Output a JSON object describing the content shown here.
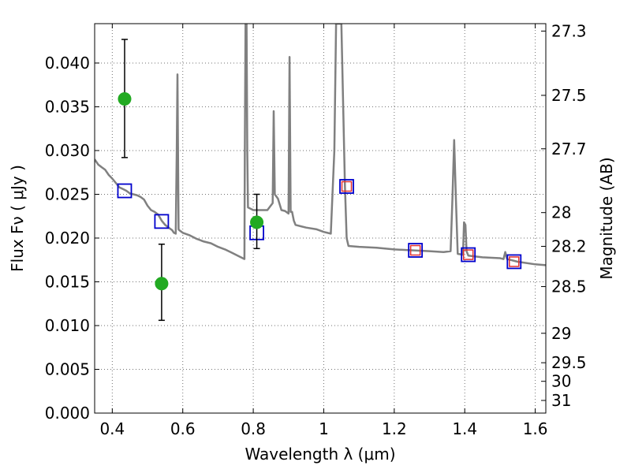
{
  "chart_data": {
    "type": "scatter",
    "xlabel": "Wavelength  λ (μm)",
    "ylabel": "Flux  Fν  ( μJy )",
    "ylabel_right": "Magnitude (AB)",
    "xlim": [
      0.35,
      1.63
    ],
    "ylim": [
      0.0,
      0.0445
    ],
    "grid": true,
    "x_ticks": [
      0.4,
      0.6,
      0.8,
      1.0,
      1.2,
      1.4,
      1.6
    ],
    "x_tick_labels": [
      "0.4",
      "0.6",
      "0.8",
      "1",
      "1.2",
      "1.4",
      "1.6"
    ],
    "y_ticks": [
      0.0,
      0.005,
      0.01,
      0.015,
      0.02,
      0.025,
      0.03,
      0.035,
      0.04
    ],
    "y_tick_labels": [
      "0.000",
      "0.005",
      "0.010",
      "0.015",
      "0.020",
      "0.025",
      "0.030",
      "0.035",
      "0.040"
    ],
    "right_ticks": [
      {
        "label": "27.3",
        "mag": 27.3
      },
      {
        "label": "27.5",
        "mag": 27.5
      },
      {
        "label": "27.7",
        "mag": 27.7
      },
      {
        "label": "28",
        "mag": 28.0
      },
      {
        "label": "28.2",
        "mag": 28.2
      },
      {
        "label": "28.5",
        "mag": 28.5
      },
      {
        "label": "29",
        "mag": 29.0
      },
      {
        "label": "29.5",
        "mag": 29.5
      },
      {
        "label": "30",
        "mag": 30.0
      },
      {
        "label": "31",
        "mag": 31.0
      }
    ],
    "series": [
      {
        "kind": "line",
        "color": "#808080",
        "points": [
          [
            0.35,
            0.029
          ],
          [
            0.36,
            0.0284
          ],
          [
            0.37,
            0.0281
          ],
          [
            0.38,
            0.0278
          ],
          [
            0.39,
            0.0272
          ],
          [
            0.4,
            0.0268
          ],
          [
            0.41,
            0.0263
          ],
          [
            0.42,
            0.0258
          ],
          [
            0.43,
            0.0256
          ],
          [
            0.44,
            0.0254
          ],
          [
            0.45,
            0.0251
          ],
          [
            0.46,
            0.025
          ],
          [
            0.47,
            0.0249
          ],
          [
            0.48,
            0.0247
          ],
          [
            0.49,
            0.0244
          ],
          [
            0.5,
            0.0237
          ],
          [
            0.51,
            0.0232
          ],
          [
            0.52,
            0.023
          ],
          [
            0.53,
            0.0227
          ],
          [
            0.54,
            0.022
          ],
          [
            0.55,
            0.0215
          ],
          [
            0.56,
            0.0212
          ],
          [
            0.57,
            0.0209
          ],
          [
            0.575,
            0.0206
          ],
          [
            0.58,
            0.0205
          ],
          [
            0.583,
            0.03
          ],
          [
            0.585,
            0.0387
          ],
          [
            0.588,
            0.021
          ],
          [
            0.59,
            0.0209
          ],
          [
            0.6,
            0.0206
          ],
          [
            0.62,
            0.0203
          ],
          [
            0.64,
            0.0199
          ],
          [
            0.66,
            0.0196
          ],
          [
            0.68,
            0.0194
          ],
          [
            0.7,
            0.019
          ],
          [
            0.72,
            0.0187
          ],
          [
            0.74,
            0.0183
          ],
          [
            0.76,
            0.0179
          ],
          [
            0.77,
            0.0177
          ],
          [
            0.775,
            0.0176
          ],
          [
            0.776,
            0.03
          ],
          [
            0.778,
            0.0445
          ],
          [
            0.781,
            0.0445
          ],
          [
            0.783,
            0.03
          ],
          [
            0.785,
            0.0235
          ],
          [
            0.8,
            0.0232
          ],
          [
            0.82,
            0.0232
          ],
          [
            0.84,
            0.0232
          ],
          [
            0.855,
            0.024
          ],
          [
            0.858,
            0.0345
          ],
          [
            0.861,
            0.025
          ],
          [
            0.87,
            0.0245
          ],
          [
            0.88,
            0.0232
          ],
          [
            0.89,
            0.0231
          ],
          [
            0.9,
            0.0228
          ],
          [
            0.903,
            0.0407
          ],
          [
            0.906,
            0.023
          ],
          [
            0.91,
            0.023
          ],
          [
            0.915,
            0.022
          ],
          [
            0.92,
            0.0215
          ],
          [
            0.95,
            0.0212
          ],
          [
            0.98,
            0.021
          ],
          [
            1.0,
            0.0207
          ],
          [
            1.02,
            0.0205
          ],
          [
            1.03,
            0.03
          ],
          [
            1.035,
            0.0445
          ],
          [
            1.05,
            0.0445
          ],
          [
            1.06,
            0.026
          ],
          [
            1.065,
            0.02
          ],
          [
            1.07,
            0.0191
          ],
          [
            1.1,
            0.019
          ],
          [
            1.15,
            0.0189
          ],
          [
            1.2,
            0.0187
          ],
          [
            1.25,
            0.0186
          ],
          [
            1.3,
            0.0185
          ],
          [
            1.34,
            0.0184
          ],
          [
            1.36,
            0.0185
          ],
          [
            1.365,
            0.0245
          ],
          [
            1.37,
            0.0312
          ],
          [
            1.375,
            0.0245
          ],
          [
            1.38,
            0.0182
          ],
          [
            1.395,
            0.0181
          ],
          [
            1.398,
            0.0218
          ],
          [
            1.402,
            0.0215
          ],
          [
            1.405,
            0.0185
          ],
          [
            1.41,
            0.018
          ],
          [
            1.45,
            0.0178
          ],
          [
            1.5,
            0.0177
          ],
          [
            1.51,
            0.0176
          ],
          [
            1.515,
            0.0184
          ],
          [
            1.52,
            0.0176
          ],
          [
            1.55,
            0.0173
          ],
          [
            1.6,
            0.017
          ],
          [
            1.63,
            0.0169
          ]
        ]
      },
      {
        "kind": "model-squares",
        "color": "#0000cc",
        "points": [
          [
            0.435,
            0.0254
          ],
          [
            0.54,
            0.0219
          ],
          [
            0.81,
            0.0206
          ],
          [
            1.065,
            0.0259
          ],
          [
            1.26,
            0.0186
          ],
          [
            1.41,
            0.0181
          ],
          [
            1.54,
            0.0173
          ]
        ]
      },
      {
        "kind": "filter-squares",
        "color": "#e03030",
        "points": [
          [
            1.065,
            0.0259
          ],
          [
            1.26,
            0.0186
          ],
          [
            1.41,
            0.0181
          ],
          [
            1.54,
            0.0173
          ]
        ]
      },
      {
        "kind": "observed",
        "color": "#22aa22",
        "points": [
          {
            "x": 0.435,
            "y": 0.0359,
            "lo": 0.0292,
            "hi": 0.0427
          },
          {
            "x": 0.54,
            "y": 0.0148,
            "lo": 0.0106,
            "hi": 0.0193
          },
          {
            "x": 0.81,
            "y": 0.0218,
            "lo": 0.0188,
            "hi": 0.025
          }
        ]
      }
    ]
  }
}
